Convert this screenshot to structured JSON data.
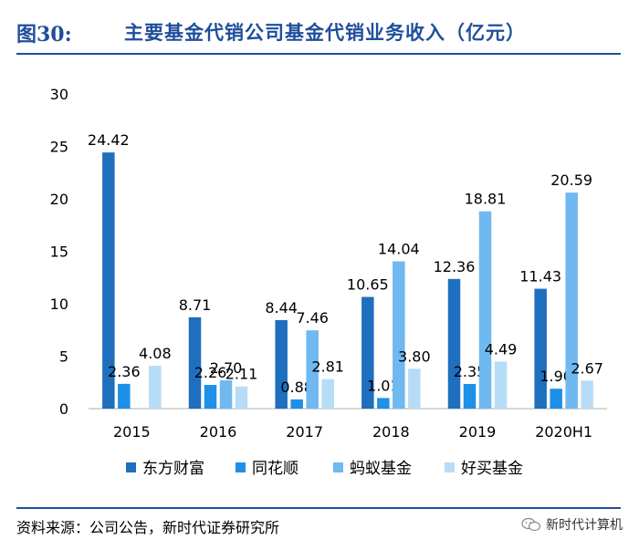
{
  "header": {
    "figure_number": "图30:",
    "title": "主要基金代销公司基金代销业务收入（亿元）"
  },
  "footer": {
    "source": "资料来源：公司公告，新时代证券研究所",
    "watermark": "新时代计算机",
    "watermark_icon": "wechat-icon"
  },
  "chart_data": {
    "type": "bar",
    "title": "主要基金代销公司基金代销业务收入（亿元）",
    "xlabel": "",
    "ylabel": "",
    "ylim": [
      0,
      30
    ],
    "yticks": [
      0,
      5,
      10,
      15,
      20,
      25,
      30
    ],
    "grid": false,
    "legend_position": "bottom",
    "categories": [
      "2015",
      "2016",
      "2017",
      "2018",
      "2019",
      "2020H1"
    ],
    "series": [
      {
        "name": "东方财富",
        "color": "#1f6fbf",
        "values": [
          24.42,
          8.71,
          8.44,
          10.65,
          12.36,
          11.43
        ],
        "labels": [
          "24.42",
          "8.71",
          "8.44",
          "10.65",
          "12.36",
          "11.43"
        ]
      },
      {
        "name": "同花顺",
        "color": "#1e90e8",
        "values": [
          2.36,
          2.26,
          0.88,
          1.01,
          2.35,
          1.9
        ],
        "labels": [
          "2.36",
          "2.26",
          "0.88",
          "1.01",
          "2.35",
          "1.90"
        ]
      },
      {
        "name": "蚂蚁基金",
        "color": "#6fb8f0",
        "values": [
          null,
          2.7,
          7.46,
          14.04,
          18.81,
          20.59
        ],
        "labels": [
          "",
          "2.70",
          "7.46",
          "14.04",
          "18.81",
          "20.59"
        ]
      },
      {
        "name": "好买基金",
        "color": "#b7dcf7",
        "values": [
          4.08,
          2.11,
          2.81,
          3.8,
          4.49,
          2.67
        ],
        "labels": [
          "4.08",
          "2.11",
          "2.81",
          "3.80",
          "4.49",
          "2.67"
        ]
      }
    ]
  }
}
